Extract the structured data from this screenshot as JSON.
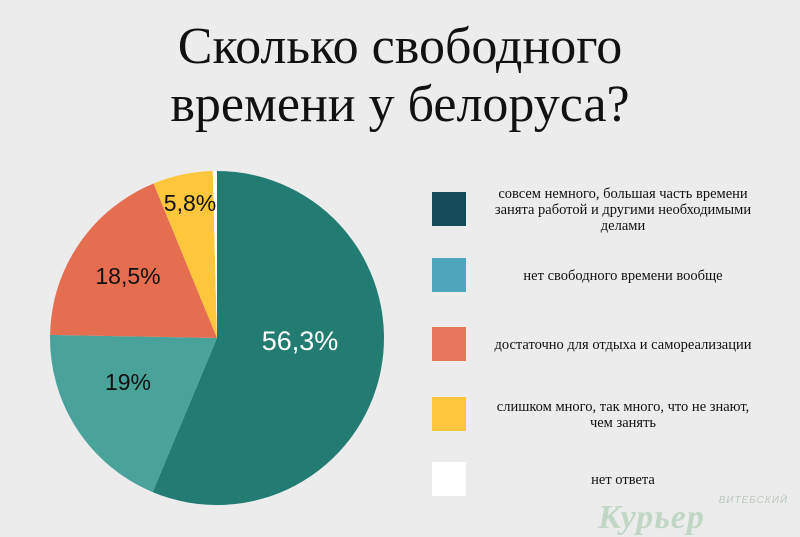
{
  "title_lines": [
    "Сколько свободного",
    "времени у белоруса?"
  ],
  "chart_data": {
    "type": "pie",
    "title": "Сколько свободного времени у белоруса?",
    "slices": [
      {
        "label": "совсем немного, большая часть времени занята работой и другими необходимыми делами",
        "value": 56.3,
        "display": "56,3%",
        "color": "#227c72",
        "legend_color": "#134b58",
        "text_color": "#ffffff"
      },
      {
        "label": "нет свободного времени вообще",
        "value": 19,
        "display": "19%",
        "color": "#4aa39a",
        "legend_color": "#4da6b9",
        "text_color": "#111111"
      },
      {
        "label": "достаточно для отдыха и самореализации",
        "value": 18.5,
        "display": "18,5%",
        "color": "#e66e50",
        "legend_color": "#e8765c",
        "text_color": "#111111"
      },
      {
        "label": "слишком много, так много, что не знают, чем занять",
        "value": 5.8,
        "display": "5,8%",
        "color": "#fdc63b",
        "legend_color": "#fdc63b",
        "text_color": "#111111"
      },
      {
        "label": "нет ответа",
        "value": 0.4,
        "display": "",
        "color": "#ffffff",
        "legend_color": "#ffffff",
        "text_color": "#111111"
      }
    ],
    "legend_placement": "right"
  },
  "watermark": {
    "top_text": "ВИТЕБСКИЙ",
    "main_text": "Курьер"
  }
}
